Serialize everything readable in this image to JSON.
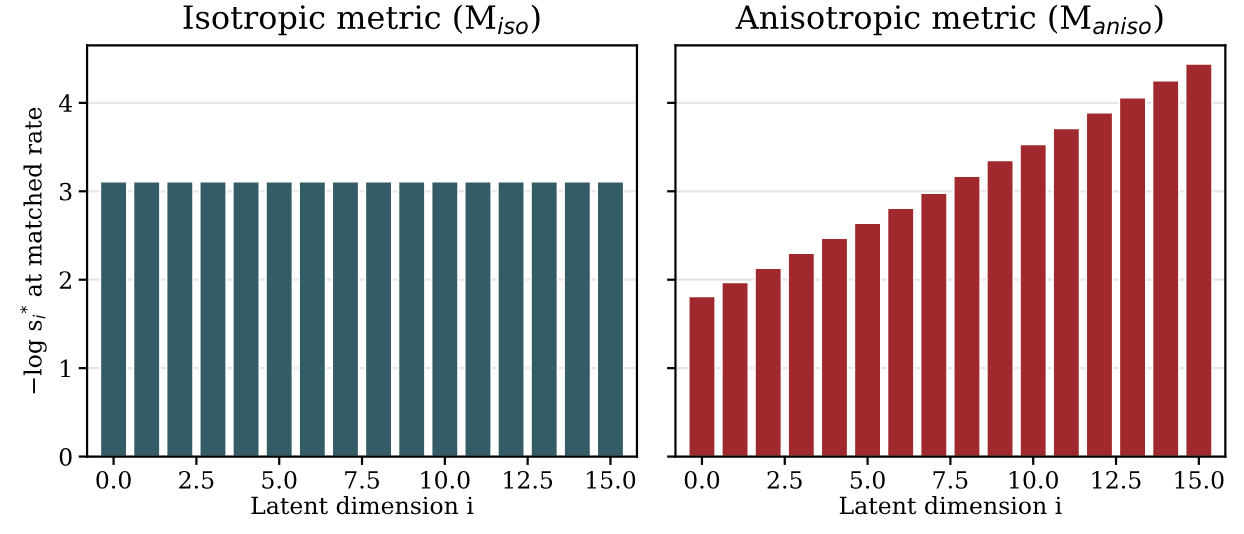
{
  "chart_data": [
    {
      "type": "bar",
      "title": "Isotropic metric (M$_{iso}$)",
      "xlabel": "Latent dimension i",
      "ylabel": "−log s$_{i}$$^{*}$ at matched rate",
      "x": [
        0,
        1,
        2,
        3,
        4,
        5,
        6,
        7,
        8,
        9,
        10,
        11,
        12,
        13,
        14,
        15
      ],
      "values": [
        3.11,
        3.11,
        3.11,
        3.11,
        3.11,
        3.11,
        3.11,
        3.11,
        3.11,
        3.11,
        3.11,
        3.11,
        3.11,
        3.11,
        3.11,
        3.11
      ],
      "color": "#345c66",
      "xlim": [
        -0.8,
        15.8
      ],
      "xticks": [
        {
          "value": 0,
          "label": "0.0"
        },
        {
          "value": 2.5,
          "label": "2.5"
        },
        {
          "value": 5,
          "label": "5.0"
        },
        {
          "value": 7.5,
          "label": "7.5"
        },
        {
          "value": 10,
          "label": "10.0"
        },
        {
          "value": 12.5,
          "label": "12.5"
        },
        {
          "value": 15,
          "label": "15.0"
        }
      ],
      "ylim": [
        0,
        4.65
      ],
      "yticks": [
        0,
        1,
        2,
        3,
        4
      ],
      "grid": "y"
    },
    {
      "type": "bar",
      "title": "Anisotropic metric (M$_{aniso}$)",
      "xlabel": "Latent dimension i",
      "x": [
        0,
        1,
        2,
        3,
        4,
        5,
        6,
        7,
        8,
        9,
        10,
        11,
        12,
        13,
        14,
        15
      ],
      "values": [
        1.81,
        1.97,
        2.13,
        2.3,
        2.47,
        2.64,
        2.81,
        2.98,
        3.17,
        3.35,
        3.53,
        3.71,
        3.89,
        4.06,
        4.25,
        4.44
      ],
      "color": "#a0292d",
      "xlim": [
        -0.8,
        15.8
      ],
      "xticks": [
        {
          "value": 0,
          "label": "0.0"
        },
        {
          "value": 2.5,
          "label": "2.5"
        },
        {
          "value": 5,
          "label": "5.0"
        },
        {
          "value": 7.5,
          "label": "7.5"
        },
        {
          "value": 10,
          "label": "10.0"
        },
        {
          "value": 12.5,
          "label": "12.5"
        },
        {
          "value": 15,
          "label": "15.0"
        }
      ],
      "ylim": [
        0,
        4.65
      ],
      "yticks": [
        0,
        1,
        2,
        3,
        4
      ],
      "grid": "y",
      "tick_labels": "x"
    }
  ]
}
